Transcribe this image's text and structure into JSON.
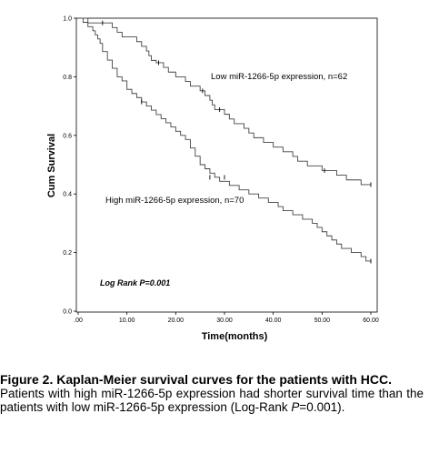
{
  "chart_data": {
    "type": "line",
    "step": true,
    "ylabel": "Cum Survival",
    "xlabel": "Time(months)",
    "xlim": [
      0,
      60
    ],
    "ylim": [
      0,
      1
    ],
    "x_ticks": [
      ".00",
      "10.00",
      "20.00",
      "30.00",
      "40.00",
      "50.00",
      "60.00"
    ],
    "y_ticks": [
      "0.0",
      "0.2",
      "0.4",
      "0.6",
      "0.8",
      "1.0"
    ],
    "grid": false,
    "series": [
      {
        "name": "Low miR-1266-5p expression, n=62",
        "points": [
          [
            0,
            1.0
          ],
          [
            2,
            0.984
          ],
          [
            7,
            0.968
          ],
          [
            8,
            0.952
          ],
          [
            9,
            0.936
          ],
          [
            12,
            0.92
          ],
          [
            13,
            0.904
          ],
          [
            14,
            0.888
          ],
          [
            14.5,
            0.872
          ],
          [
            15,
            0.856
          ],
          [
            16,
            0.848
          ],
          [
            17.5,
            0.832
          ],
          [
            18.5,
            0.816
          ],
          [
            20,
            0.8
          ],
          [
            22,
            0.784
          ],
          [
            23,
            0.768
          ],
          [
            25,
            0.752
          ],
          [
            26,
            0.736
          ],
          [
            27,
            0.72
          ],
          [
            27.5,
            0.704
          ],
          [
            28,
            0.688
          ],
          [
            30,
            0.672
          ],
          [
            31,
            0.656
          ],
          [
            32,
            0.64
          ],
          [
            34,
            0.624
          ],
          [
            35,
            0.608
          ],
          [
            36,
            0.592
          ],
          [
            38,
            0.576
          ],
          [
            40,
            0.56
          ],
          [
            42,
            0.544
          ],
          [
            44,
            0.528
          ],
          [
            45,
            0.512
          ],
          [
            47,
            0.496
          ],
          [
            50,
            0.48
          ],
          [
            53,
            0.464
          ],
          [
            55,
            0.448
          ],
          [
            58,
            0.432
          ],
          [
            60,
            0.432
          ]
        ],
        "censored": [
          [
            5,
            0.984
          ],
          [
            16.5,
            0.848
          ],
          [
            25.5,
            0.752
          ],
          [
            29,
            0.688
          ],
          [
            50.5,
            0.48
          ],
          [
            60,
            0.432
          ]
        ]
      },
      {
        "name": "High miR-1266-5p expression, n=70",
        "points": [
          [
            0,
            1.0
          ],
          [
            1,
            0.986
          ],
          [
            2,
            0.971
          ],
          [
            3,
            0.957
          ],
          [
            3.5,
            0.943
          ],
          [
            4,
            0.929
          ],
          [
            4.5,
            0.914
          ],
          [
            5,
            0.886
          ],
          [
            6,
            0.857
          ],
          [
            7,
            0.829
          ],
          [
            8,
            0.8
          ],
          [
            9,
            0.786
          ],
          [
            10,
            0.757
          ],
          [
            11,
            0.743
          ],
          [
            12,
            0.729
          ],
          [
            13,
            0.714
          ],
          [
            14,
            0.7
          ],
          [
            15,
            0.686
          ],
          [
            16,
            0.671
          ],
          [
            17,
            0.657
          ],
          [
            18,
            0.643
          ],
          [
            19,
            0.629
          ],
          [
            20,
            0.614
          ],
          [
            21,
            0.6
          ],
          [
            22,
            0.586
          ],
          [
            23,
            0.557
          ],
          [
            24,
            0.529
          ],
          [
            25,
            0.5
          ],
          [
            26,
            0.486
          ],
          [
            27,
            0.471
          ],
          [
            28,
            0.457
          ],
          [
            29,
            0.443
          ],
          [
            31,
            0.429
          ],
          [
            33,
            0.414
          ],
          [
            35,
            0.4
          ],
          [
            37,
            0.386
          ],
          [
            39,
            0.371
          ],
          [
            41,
            0.357
          ],
          [
            42,
            0.343
          ],
          [
            44,
            0.329
          ],
          [
            46,
            0.314
          ],
          [
            48,
            0.3
          ],
          [
            49,
            0.286
          ],
          [
            50,
            0.271
          ],
          [
            51,
            0.257
          ],
          [
            52,
            0.243
          ],
          [
            53,
            0.229
          ],
          [
            54,
            0.214
          ],
          [
            56,
            0.2
          ],
          [
            58,
            0.186
          ],
          [
            59,
            0.171
          ],
          [
            60,
            0.171
          ]
        ],
        "censored": [
          [
            13,
            0.714
          ],
          [
            27,
            0.457
          ],
          [
            30,
            0.457
          ],
          [
            60,
            0.171
          ]
        ]
      }
    ],
    "annotations": {
      "low": "Low miR-1266-5p expression, n=62",
      "high": "High miR-1266-5p expression, n=70",
      "logrank": "Log Rank P=0.001"
    }
  },
  "caption": {
    "title": "Figure 2. Kaplan-Meier survival curves for the patients with HCC.",
    "text_before": "Patients with high miR-1266-5p expression had shorter survival time than the patients with low miR-1266-5p expression (Log-Rank ",
    "text_italic": "P",
    "text_after": "=0.001)."
  }
}
